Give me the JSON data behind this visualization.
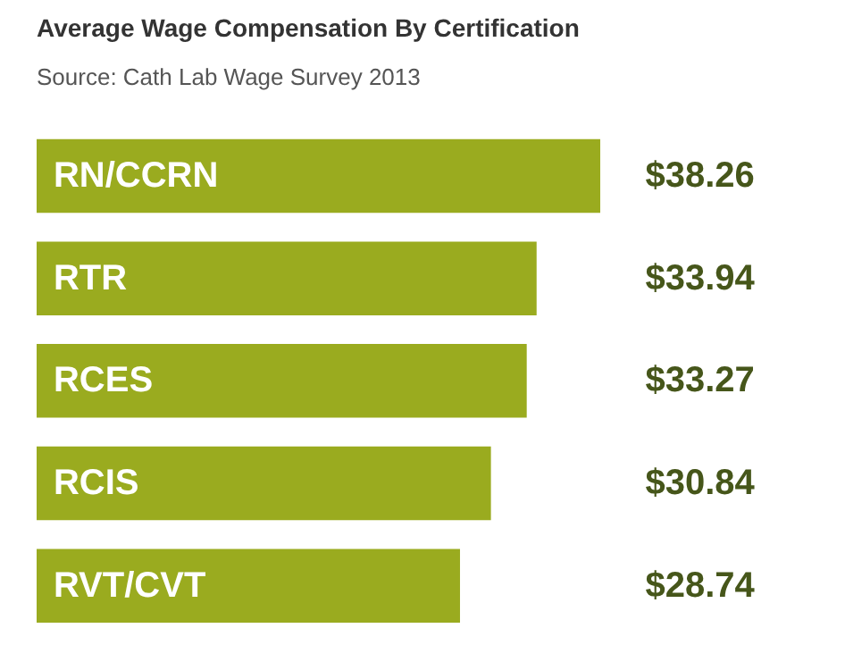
{
  "chart_data": {
    "type": "bar",
    "orientation": "horizontal",
    "title": "Average Wage Compensation By Certification",
    "subtitle": "Source: Cath Lab Wage Survey 2013",
    "categories": [
      "RN/CCRN",
      "RTR",
      "RCES",
      "RCIS",
      "RVT/CVT"
    ],
    "values": [
      38.26,
      33.94,
      33.27,
      30.84,
      28.74
    ],
    "value_labels": [
      "$38.26",
      "$33.94",
      "$33.27",
      "$30.84",
      "$28.74"
    ],
    "color": "#9aab1f"
  }
}
